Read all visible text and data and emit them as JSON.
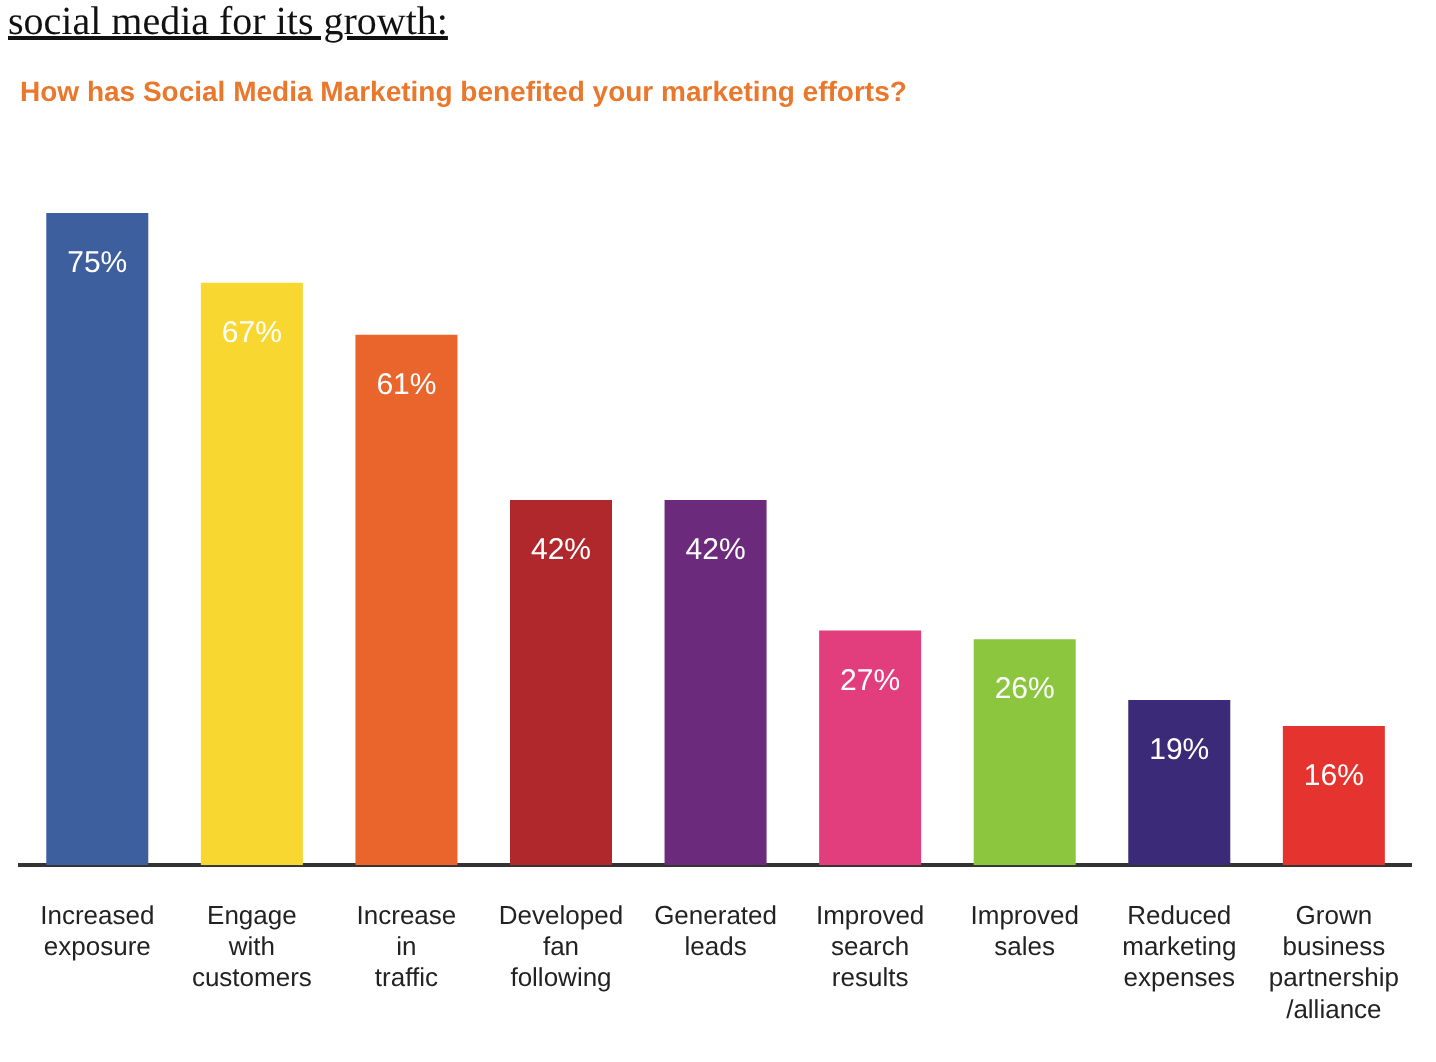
{
  "chart_data": {
    "type": "bar",
    "title": "How has Social Media Marketing benefited your marketing efforts?",
    "annotations": [
      "social media for its growth:"
    ],
    "categories": [
      "Increased\nexposure",
      "Engage\nwith\ncustomers",
      "Increase\nin\ntraffic",
      "Developed\nfan\nfollowing",
      "Generated\nleads",
      "Improved\nsearch\nresults",
      "Improved\nsales",
      "Reduced\nmarketing\nexpenses",
      "Grown\nbusiness\npartnership\n/alliance"
    ],
    "values": [
      75,
      67,
      61,
      42,
      42,
      27,
      26,
      19,
      16
    ],
    "colors": [
      "#3d5f9e",
      "#f7d730",
      "#e9652c",
      "#b0282c",
      "#6c2a7c",
      "#e23d7d",
      "#8cc63f",
      "#3b2a78",
      "#e53330"
    ],
    "value_labels": [
      "75%",
      "67%",
      "61%",
      "42%",
      "42%",
      "27%",
      "26%",
      "19%",
      "16%"
    ],
    "tick_labels": "x",
    "grid": false,
    "legend": false
  }
}
